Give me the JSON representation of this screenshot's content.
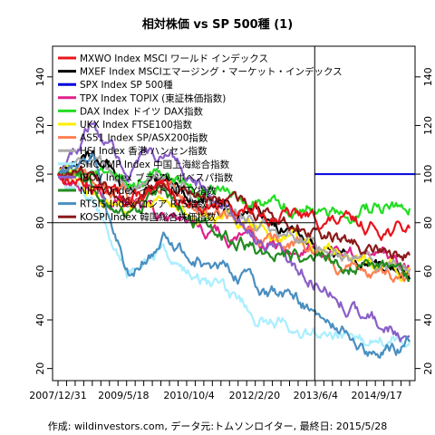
{
  "chart_data": {
    "type": "line",
    "title": "相対株価 vs SP 500種 (1)",
    "caption": "作成: wildinvestors.com, データ元:トムソンロイター, 最終日: 2015/5/28",
    "x_ticks": [
      "2007/12/31",
      "2009/5/18",
      "2010/10/4",
      "2012/2/20",
      "2013/6/4",
      "2014/9/17"
    ],
    "x_range": [
      "2007-12-31",
      "2015-05-28"
    ],
    "ylim": [
      18,
      150
    ],
    "y_ticks_left": [
      20,
      40,
      60,
      80,
      100,
      120,
      140
    ],
    "y_ticks_right": [
      20,
      40,
      60,
      80,
      100,
      120,
      140
    ],
    "reference_hline": 100,
    "reference_vline": "2013-05-28",
    "reference_hline_left": 80,
    "series": [
      {
        "name": "MXWO Index MSCI ワールド インデックス",
        "color": "#e8141c",
        "values": [
          100,
          95,
          90,
          92,
          88,
          86,
          84,
          82,
          80,
          78,
          77
        ]
      },
      {
        "name": "MXEF Index MSCIエマージング・マーケット・インデックス",
        "color": "#000000",
        "values": [
          100,
          108,
          95,
          99,
          92,
          86,
          80,
          74,
          68,
          62,
          57
        ]
      },
      {
        "name": "SPX Index SP 500種",
        "color": "#0000dd",
        "values": [
          100,
          100,
          100,
          100,
          100,
          100,
          100,
          100,
          100,
          100,
          100
        ]
      },
      {
        "name": "TPX Index TOPIX (東証株価指数)",
        "color": "#e0208a",
        "values": [
          100,
          90,
          88,
          82,
          80,
          74,
          72,
          70,
          68,
          65,
          63
        ]
      },
      {
        "name": "DAX Index ドイツ DAX指数",
        "color": "#22dd22",
        "values": [
          100,
          102,
          96,
          100,
          94,
          92,
          88,
          86,
          84,
          86,
          88
        ]
      },
      {
        "name": "UKX Index FTSE100指数",
        "color": "#ffee00",
        "values": [
          100,
          92,
          86,
          90,
          84,
          80,
          76,
          72,
          68,
          62,
          60
        ]
      },
      {
        "name": "AS51 Index SP/ASX200指数",
        "color": "#ff7f50",
        "values": [
          100,
          98,
          90,
          94,
          86,
          80,
          74,
          70,
          64,
          58,
          56
        ]
      },
      {
        "name": "HSI Index 香港 ハンセン指数",
        "color": "#aaaaaa",
        "values": [
          100,
          108,
          94,
          98,
          90,
          84,
          78,
          74,
          68,
          64,
          62
        ]
      },
      {
        "name": "SHCOMP Index 中国上海総合指数",
        "color": "#aaeeff",
        "values": [
          100,
          90,
          58,
          70,
          56,
          48,
          40,
          36,
          34,
          32,
          34
        ]
      },
      {
        "name": "IBOV Index ブラジル ボベスパ指数",
        "color": "#8a5fc8",
        "values": [
          100,
          120,
          100,
          110,
          96,
          82,
          70,
          60,
          50,
          40,
          34
        ]
      },
      {
        "name": "NIFTY Index インド NIFTY指数",
        "color": "#228b22",
        "values": [
          100,
          96,
          82,
          92,
          80,
          72,
          68,
          66,
          64,
          62,
          60
        ]
      },
      {
        "name": "RTSI$ Index ロシア RTS指数 USD",
        "color": "#4a8fc0",
        "values": [
          100,
          105,
          60,
          72,
          64,
          58,
          52,
          46,
          38,
          26,
          30
        ]
      },
      {
        "name": "KOSPI Index 韓国総合株価指数",
        "color": "#8b1a1a",
        "values": [
          100,
          100,
          88,
          96,
          92,
          88,
          84,
          80,
          74,
          70,
          68
        ]
      }
    ]
  }
}
